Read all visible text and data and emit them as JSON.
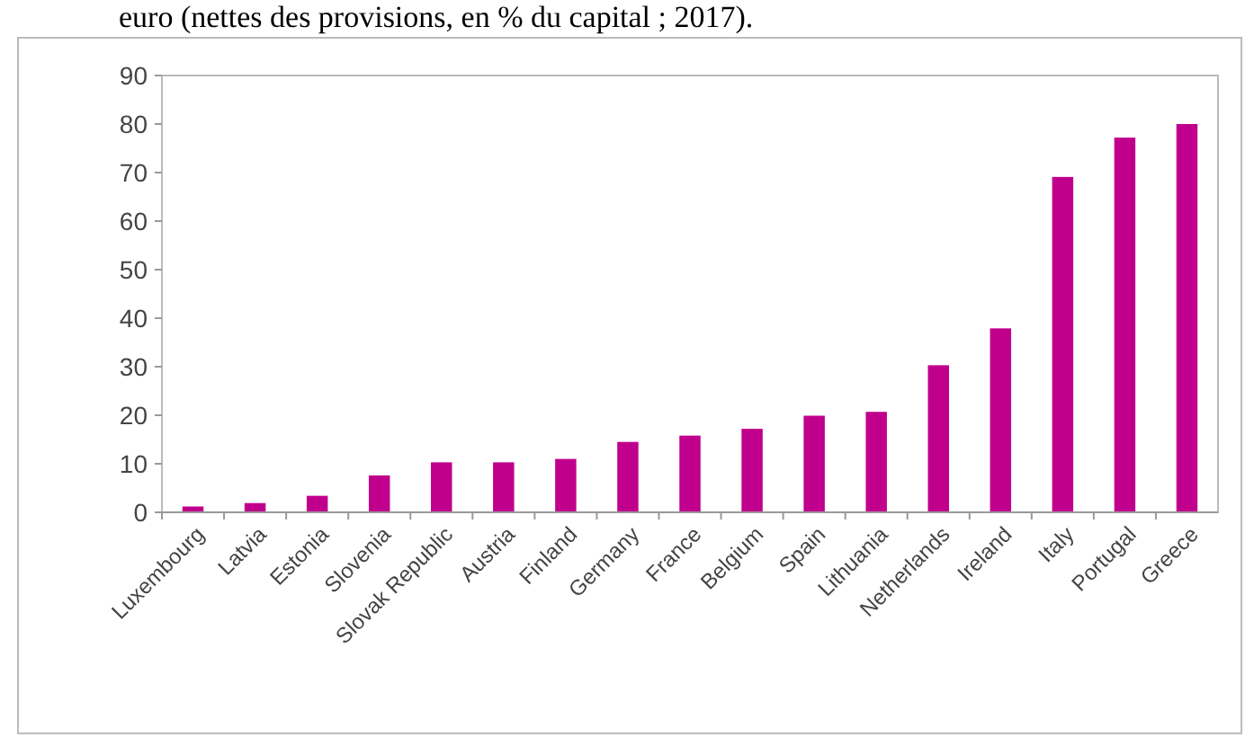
{
  "chart_data": {
    "type": "bar",
    "title": "euro (nettes des provisions, en % du capital ; 2017).",
    "categories": [
      "Luxembourg",
      "Latvia",
      "Estonia",
      "Slovenia",
      "Slovak Republic",
      "Austria",
      "Finland",
      "Germany",
      "France",
      "Belgium",
      "Spain",
      "Lithuania",
      "Netherlands",
      "Ireland",
      "Italy",
      "Portugal",
      "Greece"
    ],
    "values": [
      1.2,
      1.9,
      3.4,
      7.6,
      10.3,
      10.3,
      11.0,
      14.5,
      15.8,
      17.2,
      19.9,
      20.7,
      30.3,
      37.9,
      69.1,
      77.2,
      80.0
    ],
    "color": "#c0008c",
    "ylim": [
      0,
      90
    ],
    "yticks": [
      0,
      10,
      20,
      30,
      40,
      50,
      60,
      70,
      80,
      90
    ],
    "grid": false
  }
}
